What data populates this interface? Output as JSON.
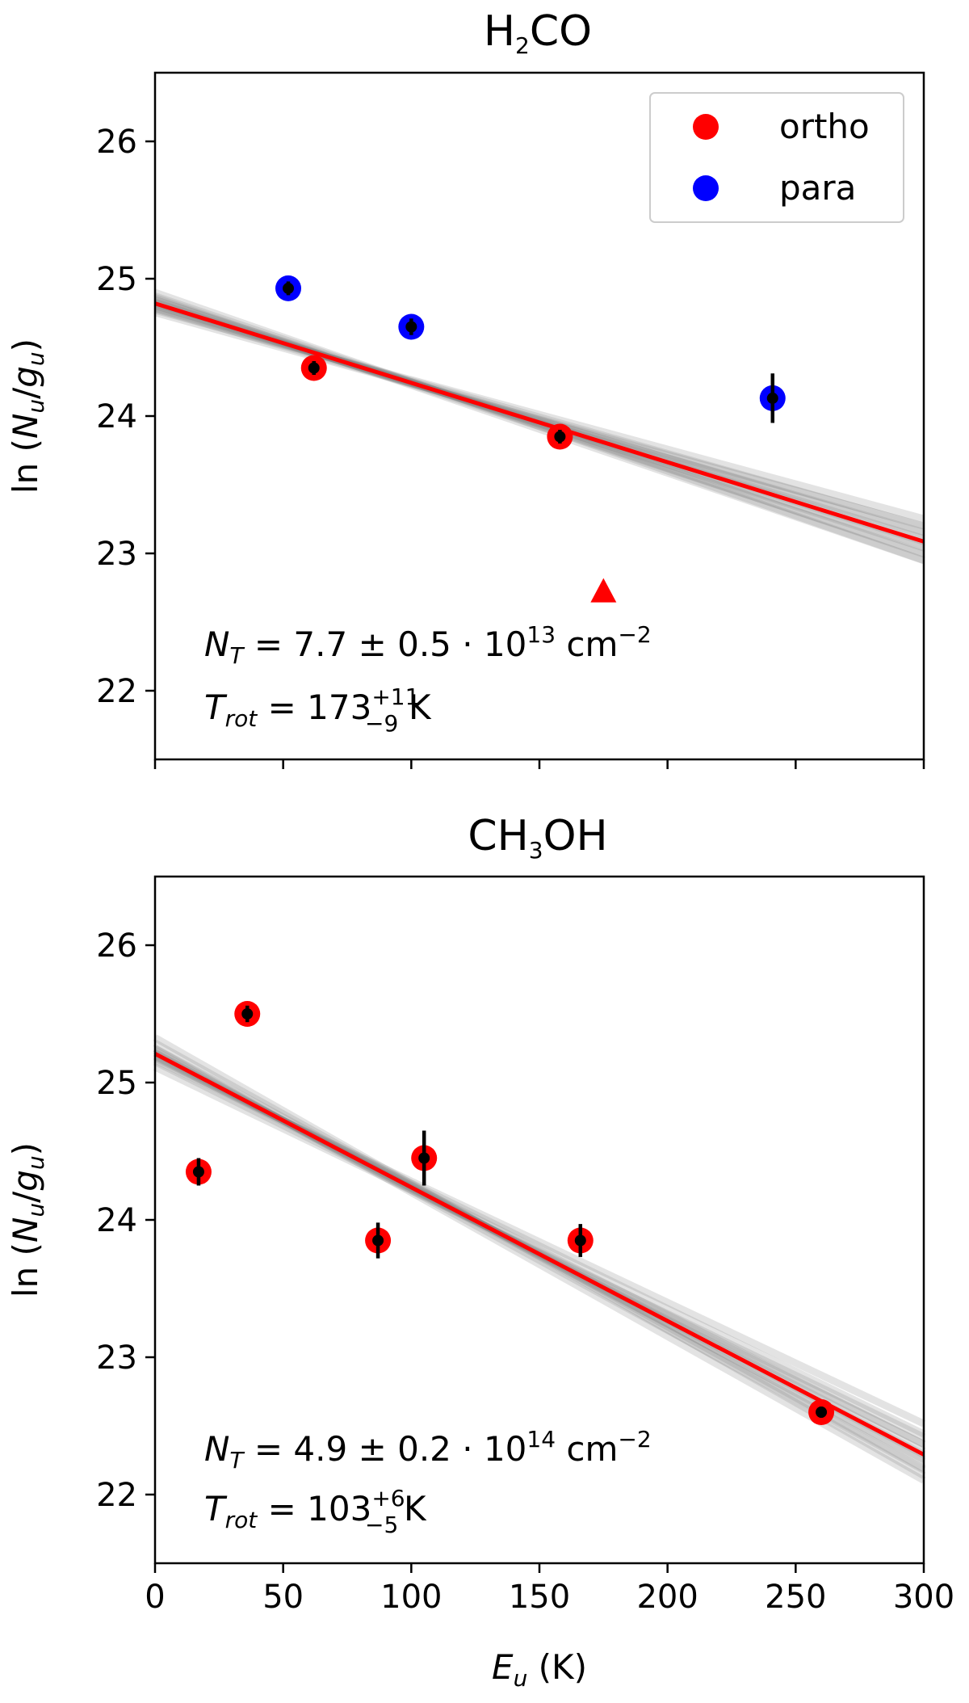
{
  "figure": {
    "xlabel_main": "E",
    "xlabel_sub": "u",
    "xlabel_unit": " (K)"
  },
  "chart_data": [
    {
      "type": "scatter",
      "panel": "top",
      "title_main": "H",
      "title_sub": "2",
      "title_tail": "CO",
      "title": "H2CO",
      "xlabel": "",
      "ylabel": "ln (Nu/gu)",
      "ylabel_prefix": "ln (",
      "ylabel_n": "N",
      "ylabel_nsub": "u",
      "ylabel_slash": "/",
      "ylabel_g": "g",
      "ylabel_gsub": "u",
      "ylabel_suffix": ")",
      "xlim": [
        0,
        300
      ],
      "ylim": [
        21.5,
        26.5
      ],
      "xticks": [
        0,
        50,
        100,
        150,
        200,
        250,
        300
      ],
      "show_xtick_labels": false,
      "yticks": [
        22,
        23,
        24,
        25,
        26
      ],
      "legend": {
        "position": "top-right",
        "entries": [
          {
            "label": "ortho",
            "color": "#ff0000"
          },
          {
            "label": "para",
            "color": "#0000ff"
          }
        ]
      },
      "series": [
        {
          "name": "ortho",
          "color": "#ff0000",
          "x": [
            62,
            158
          ],
          "y": [
            24.35,
            23.85
          ],
          "yerr": [
            0.05,
            0.05
          ]
        },
        {
          "name": "para",
          "color": "#0000ff",
          "x": [
            52,
            100,
            241
          ],
          "y": [
            24.93,
            24.65,
            24.13
          ],
          "yerr": [
            0.05,
            0.06,
            0.18
          ]
        }
      ],
      "upper_limits": [
        {
          "x": 175,
          "y": 22.72,
          "color": "#ff0000"
        }
      ],
      "fit": {
        "color": "#ff0000",
        "intercept": 24.82,
        "slope": -0.00578,
        "band_intercept_sd": 0.05,
        "band_slope_sd": 0.00036
      },
      "annotation": {
        "line1_symbol": "N",
        "line1_sub": "T",
        "line1_text": " = 7.7 ± 0.5 · 10",
        "line1_exp": "13",
        "line1_unit": " cm",
        "line1_unit_exp": "−2",
        "line2_symbol": "T",
        "line2_sub": "rot",
        "line2_text": " = 173",
        "line2_sup": "+11",
        "line2_low": "−9",
        "line2_unit": " K"
      }
    },
    {
      "type": "scatter",
      "panel": "bottom",
      "title_main": "CH",
      "title_sub": "3",
      "title_tail": "OH",
      "title": "CH3OH",
      "xlabel": "Eu (K)",
      "ylabel": "ln (Nu/gu)",
      "ylabel_prefix": "ln (",
      "ylabel_n": "N",
      "ylabel_nsub": "u",
      "ylabel_slash": "/",
      "ylabel_g": "g",
      "ylabel_gsub": "u",
      "ylabel_suffix": ")",
      "xlim": [
        0,
        300
      ],
      "ylim": [
        21.5,
        26.5
      ],
      "xticks": [
        0,
        50,
        100,
        150,
        200,
        250,
        300
      ],
      "show_xtick_labels": true,
      "yticks": [
        22,
        23,
        24,
        25,
        26
      ],
      "series": [
        {
          "name": "CH3OH",
          "color": "#ff0000",
          "x": [
            17,
            36,
            87,
            105,
            166,
            260
          ],
          "y": [
            24.35,
            25.5,
            23.85,
            24.45,
            23.85,
            22.6
          ],
          "yerr": [
            0.1,
            0.06,
            0.13,
            0.2,
            0.12,
            0.04
          ]
        }
      ],
      "fit": {
        "color": "#ff0000",
        "intercept": 25.21,
        "slope": -0.00973,
        "band_intercept_sd": 0.12,
        "band_slope_sd": 0.00045
      },
      "annotation": {
        "line1_symbol": "N",
        "line1_sub": "T",
        "line1_text": " = 4.9 ± 0.2 · 10",
        "line1_exp": "14",
        "line1_unit": " cm",
        "line1_unit_exp": "−2",
        "line2_symbol": "T",
        "line2_sub": "rot",
        "line2_text": " = 103",
        "line2_sup": "+6",
        "line2_low": "−5",
        "line2_unit": " K"
      }
    }
  ]
}
